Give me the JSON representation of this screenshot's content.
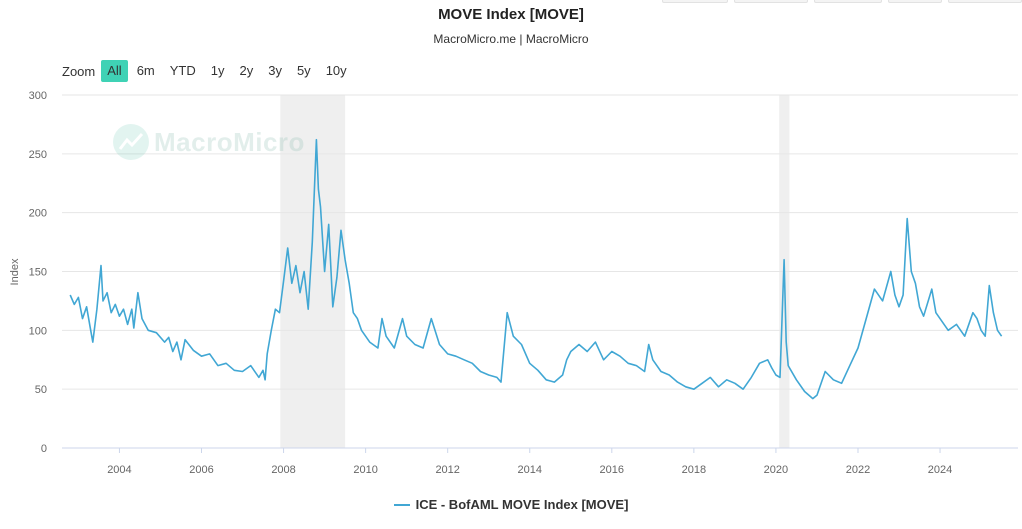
{
  "chart_data": {
    "type": "line",
    "title": "MOVE Index [MOVE]",
    "subtitle": "MacroMicro.me | MacroMicro",
    "ylabel": "Index",
    "xlabel": "",
    "ylim": [
      0,
      300
    ],
    "yticks": [
      0,
      50,
      100,
      150,
      200,
      250,
      300
    ],
    "xlim": [
      2002.6,
      2025.9
    ],
    "xticks": [
      "2004",
      "2006",
      "2008",
      "2010",
      "2012",
      "2014",
      "2016",
      "2018",
      "2020",
      "2022",
      "2024"
    ],
    "grid": true,
    "legend_position": "bottom-center",
    "shaded_periods": [
      [
        2007.92,
        2009.5
      ],
      [
        2020.08,
        2020.33
      ]
    ],
    "series": [
      {
        "name": "ICE - BofAML MOVE Index [MOVE]",
        "color": "#41a7d4",
        "points": [
          [
            2002.8,
            130
          ],
          [
            2002.9,
            122
          ],
          [
            2003.0,
            128
          ],
          [
            2003.1,
            110
          ],
          [
            2003.2,
            120
          ],
          [
            2003.3,
            100
          ],
          [
            2003.35,
            90
          ],
          [
            2003.45,
            118
          ],
          [
            2003.55,
            155
          ],
          [
            2003.6,
            125
          ],
          [
            2003.7,
            132
          ],
          [
            2003.8,
            115
          ],
          [
            2003.9,
            122
          ],
          [
            2004.0,
            112
          ],
          [
            2004.1,
            118
          ],
          [
            2004.2,
            105
          ],
          [
            2004.3,
            118
          ],
          [
            2004.35,
            102
          ],
          [
            2004.45,
            132
          ],
          [
            2004.55,
            110
          ],
          [
            2004.7,
            100
          ],
          [
            2004.9,
            98
          ],
          [
            2005.1,
            90
          ],
          [
            2005.2,
            94
          ],
          [
            2005.3,
            82
          ],
          [
            2005.4,
            90
          ],
          [
            2005.5,
            75
          ],
          [
            2005.6,
            92
          ],
          [
            2005.8,
            83
          ],
          [
            2006.0,
            78
          ],
          [
            2006.2,
            80
          ],
          [
            2006.4,
            70
          ],
          [
            2006.6,
            72
          ],
          [
            2006.8,
            66
          ],
          [
            2007.0,
            65
          ],
          [
            2007.2,
            70
          ],
          [
            2007.4,
            60
          ],
          [
            2007.5,
            66
          ],
          [
            2007.55,
            58
          ],
          [
            2007.6,
            80
          ],
          [
            2007.7,
            100
          ],
          [
            2007.8,
            118
          ],
          [
            2007.9,
            115
          ],
          [
            2008.0,
            142
          ],
          [
            2008.1,
            170
          ],
          [
            2008.2,
            140
          ],
          [
            2008.3,
            155
          ],
          [
            2008.4,
            132
          ],
          [
            2008.5,
            150
          ],
          [
            2008.6,
            118
          ],
          [
            2008.7,
            175
          ],
          [
            2008.8,
            262
          ],
          [
            2008.85,
            220
          ],
          [
            2008.9,
            205
          ],
          [
            2009.0,
            150
          ],
          [
            2009.1,
            190
          ],
          [
            2009.2,
            120
          ],
          [
            2009.3,
            145
          ],
          [
            2009.4,
            185
          ],
          [
            2009.5,
            160
          ],
          [
            2009.6,
            140
          ],
          [
            2009.7,
            115
          ],
          [
            2009.8,
            110
          ],
          [
            2009.9,
            100
          ],
          [
            2010.0,
            95
          ],
          [
            2010.1,
            90
          ],
          [
            2010.3,
            85
          ],
          [
            2010.4,
            110
          ],
          [
            2010.5,
            95
          ],
          [
            2010.7,
            85
          ],
          [
            2010.9,
            110
          ],
          [
            2011.0,
            95
          ],
          [
            2011.2,
            88
          ],
          [
            2011.4,
            85
          ],
          [
            2011.6,
            110
          ],
          [
            2011.8,
            88
          ],
          [
            2012.0,
            80
          ],
          [
            2012.2,
            78
          ],
          [
            2012.4,
            75
          ],
          [
            2012.6,
            72
          ],
          [
            2012.8,
            65
          ],
          [
            2013.0,
            62
          ],
          [
            2013.2,
            60
          ],
          [
            2013.3,
            56
          ],
          [
            2013.45,
            115
          ],
          [
            2013.6,
            95
          ],
          [
            2013.8,
            88
          ],
          [
            2014.0,
            72
          ],
          [
            2014.2,
            66
          ],
          [
            2014.4,
            58
          ],
          [
            2014.6,
            56
          ],
          [
            2014.8,
            62
          ],
          [
            2014.9,
            75
          ],
          [
            2015.0,
            82
          ],
          [
            2015.2,
            88
          ],
          [
            2015.4,
            82
          ],
          [
            2015.6,
            90
          ],
          [
            2015.8,
            75
          ],
          [
            2016.0,
            82
          ],
          [
            2016.2,
            78
          ],
          [
            2016.4,
            72
          ],
          [
            2016.6,
            70
          ],
          [
            2016.8,
            65
          ],
          [
            2016.9,
            88
          ],
          [
            2017.0,
            75
          ],
          [
            2017.2,
            65
          ],
          [
            2017.4,
            62
          ],
          [
            2017.6,
            56
          ],
          [
            2017.8,
            52
          ],
          [
            2018.0,
            50
          ],
          [
            2018.2,
            55
          ],
          [
            2018.4,
            60
          ],
          [
            2018.6,
            52
          ],
          [
            2018.8,
            58
          ],
          [
            2019.0,
            55
          ],
          [
            2019.2,
            50
          ],
          [
            2019.4,
            60
          ],
          [
            2019.6,
            72
          ],
          [
            2019.8,
            75
          ],
          [
            2019.9,
            68
          ],
          [
            2020.0,
            62
          ],
          [
            2020.1,
            60
          ],
          [
            2020.2,
            160
          ],
          [
            2020.25,
            90
          ],
          [
            2020.3,
            70
          ],
          [
            2020.5,
            58
          ],
          [
            2020.7,
            48
          ],
          [
            2020.9,
            42
          ],
          [
            2021.0,
            45
          ],
          [
            2021.2,
            65
          ],
          [
            2021.4,
            58
          ],
          [
            2021.6,
            55
          ],
          [
            2021.8,
            70
          ],
          [
            2022.0,
            85
          ],
          [
            2022.2,
            110
          ],
          [
            2022.4,
            135
          ],
          [
            2022.6,
            125
          ],
          [
            2022.8,
            150
          ],
          [
            2022.9,
            130
          ],
          [
            2023.0,
            120
          ],
          [
            2023.1,
            130
          ],
          [
            2023.2,
            195
          ],
          [
            2023.3,
            150
          ],
          [
            2023.4,
            140
          ],
          [
            2023.5,
            120
          ],
          [
            2023.6,
            112
          ],
          [
            2023.8,
            135
          ],
          [
            2023.9,
            115
          ],
          [
            2024.0,
            110
          ],
          [
            2024.2,
            100
          ],
          [
            2024.4,
            105
          ],
          [
            2024.6,
            95
          ],
          [
            2024.8,
            115
          ],
          [
            2024.9,
            110
          ],
          [
            2025.0,
            100
          ],
          [
            2025.1,
            95
          ],
          [
            2025.2,
            138
          ],
          [
            2025.3,
            115
          ],
          [
            2025.4,
            100
          ],
          [
            2025.5,
            95
          ]
        ]
      }
    ]
  },
  "toolbar": {
    "zoom_label": "Zoom",
    "ranges": [
      "All",
      "6m",
      "YTD",
      "1y",
      "2y",
      "3y",
      "5y",
      "10y"
    ],
    "active_range": "All"
  },
  "watermark": {
    "text": "MacroMicro"
  }
}
